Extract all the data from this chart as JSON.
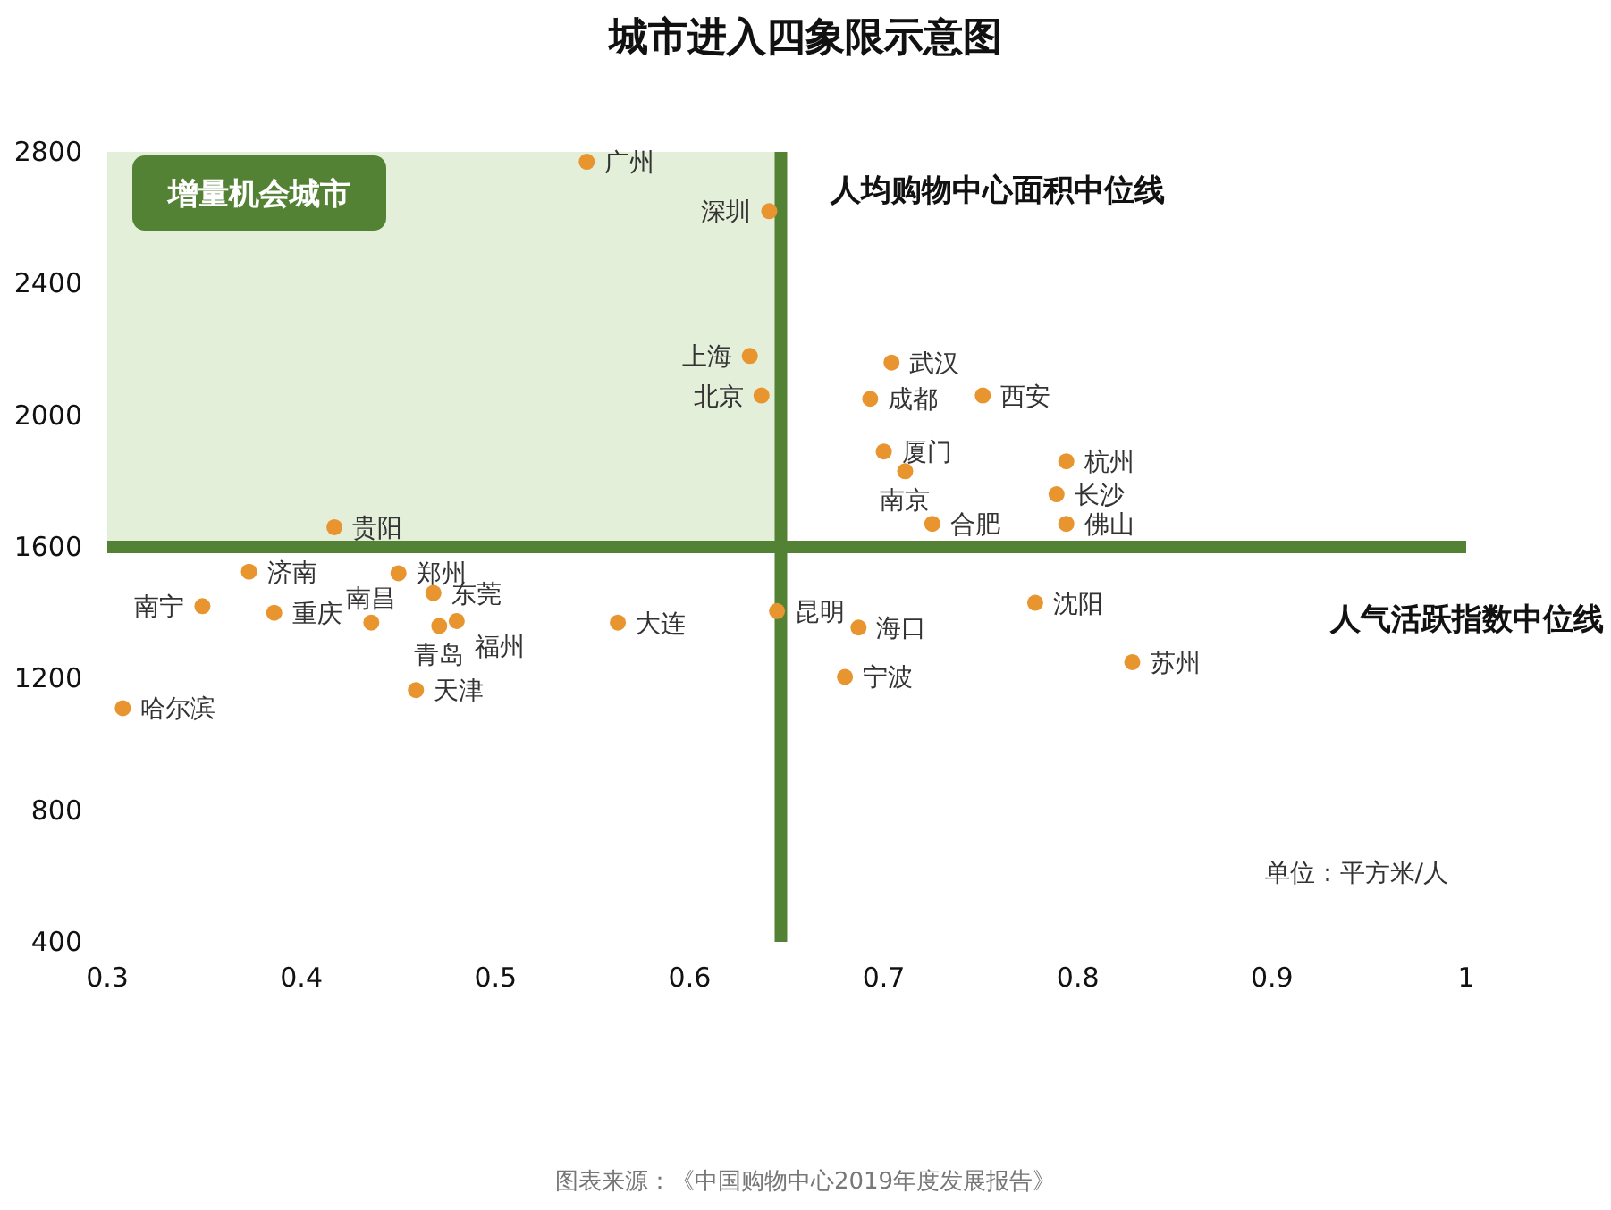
{
  "chart_data": {
    "type": "scatter",
    "title": "城市进入四象限示意图",
    "xlim": [
      0.3,
      1
    ],
    "ylim": [
      400,
      2800
    ],
    "xticks": [
      0.3,
      0.4,
      0.5,
      0.6,
      0.7,
      0.8,
      0.9,
      1
    ],
    "yticks": [
      400,
      800,
      1200,
      1600,
      2000,
      2400,
      2800
    ],
    "marker": "circle",
    "series": [
      {
        "color": "#e8952f",
        "x": [
          0.547,
          0.641,
          0.631,
          0.637,
          0.417,
          0.704,
          0.693,
          0.751,
          0.7,
          0.711,
          0.794,
          0.789,
          0.725,
          0.794,
          0.373,
          0.386,
          0.349,
          0.45,
          0.468,
          0.436,
          0.471,
          0.48,
          0.459,
          0.308,
          0.563,
          0.645,
          0.687,
          0.68,
          0.778,
          0.828
        ],
        "values": [
          2770,
          2620,
          2180,
          2060,
          1660,
          2160,
          2050,
          2060,
          1890,
          1830,
          1860,
          1760,
          1670,
          1670,
          1525,
          1400,
          1420,
          1520,
          1460,
          1370,
          1360,
          1375,
          1165,
          1110,
          1370,
          1405,
          1355,
          1205,
          1430,
          1250
        ]
      }
    ],
    "ref_lines": [
      {
        "axis": "x",
        "value": 0.647,
        "label": "人均购物中心面积中位线",
        "color": "#548235"
      },
      {
        "axis": "y",
        "value": 1600,
        "label": "人气活跃指数中位线",
        "color": "#548235"
      }
    ],
    "bands": [
      {
        "axis": "x",
        "from": 0.3,
        "to": 0.647,
        "label": "增量机会城市",
        "color": "#e3efd9"
      }
    ],
    "annotations": [
      "单位：平方米/人",
      "图表来源：《中国购物中心2019年度发展报告》",
      {
        "text": "广州",
        "x": 0.547,
        "y": 2770
      },
      {
        "text": "深圳",
        "x": 0.641,
        "y": 2620
      },
      {
        "text": "上海",
        "x": 0.631,
        "y": 2180
      },
      {
        "text": "北京",
        "x": 0.637,
        "y": 2060
      },
      {
        "text": "贵阳",
        "x": 0.417,
        "y": 1660
      },
      {
        "text": "武汉",
        "x": 0.704,
        "y": 2160
      },
      {
        "text": "成都",
        "x": 0.693,
        "y": 2050
      },
      {
        "text": "西安",
        "x": 0.751,
        "y": 2060
      },
      {
        "text": "厦门",
        "x": 0.7,
        "y": 1890
      },
      {
        "text": "南京",
        "x": 0.711,
        "y": 1830
      },
      {
        "text": "杭州",
        "x": 0.794,
        "y": 1860
      },
      {
        "text": "长沙",
        "x": 0.789,
        "y": 1760
      },
      {
        "text": "合肥",
        "x": 0.725,
        "y": 1670
      },
      {
        "text": "佛山",
        "x": 0.794,
        "y": 1670
      },
      {
        "text": "济南",
        "x": 0.373,
        "y": 1525
      },
      {
        "text": "重庆",
        "x": 0.386,
        "y": 1400
      },
      {
        "text": "南宁",
        "x": 0.349,
        "y": 1420
      },
      {
        "text": "郑州",
        "x": 0.45,
        "y": 1520
      },
      {
        "text": "东莞",
        "x": 0.468,
        "y": 1460
      },
      {
        "text": "南昌",
        "x": 0.436,
        "y": 1370
      },
      {
        "text": "青岛",
        "x": 0.471,
        "y": 1360
      },
      {
        "text": "福州",
        "x": 0.48,
        "y": 1375
      },
      {
        "text": "天津",
        "x": 0.459,
        "y": 1165
      },
      {
        "text": "哈尔滨",
        "x": 0.308,
        "y": 1110
      },
      {
        "text": "大连",
        "x": 0.563,
        "y": 1370
      },
      {
        "text": "昆明",
        "x": 0.645,
        "y": 1405
      },
      {
        "text": "海口",
        "x": 0.687,
        "y": 1355
      },
      {
        "text": "宁波",
        "x": 0.68,
        "y": 1205
      },
      {
        "text": "沈阳",
        "x": 0.778,
        "y": 1430
      },
      {
        "text": "苏州",
        "x": 0.828,
        "y": 1250
      }
    ]
  }
}
